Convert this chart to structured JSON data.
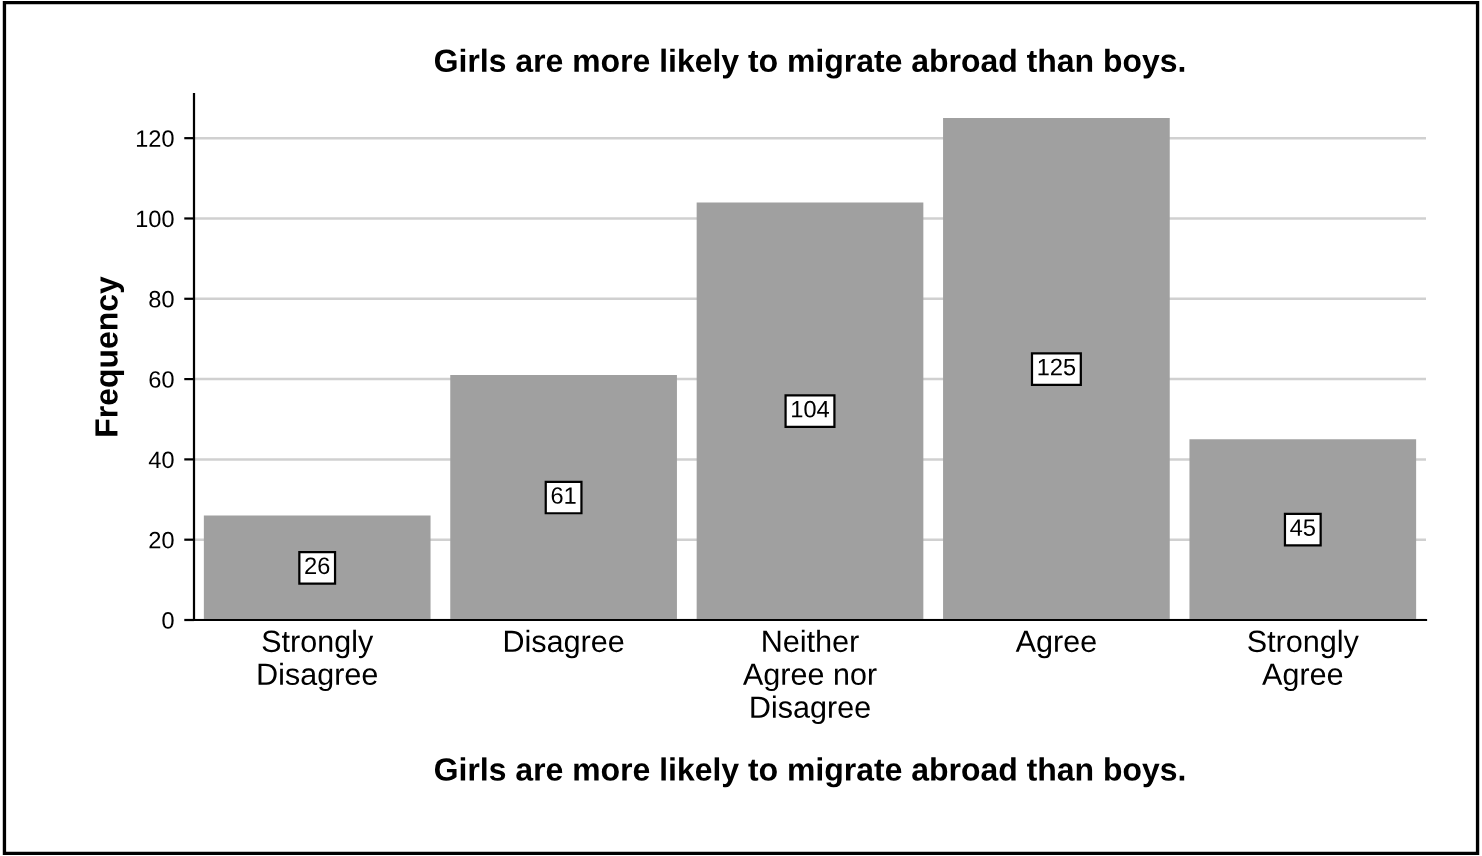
{
  "chart_data": {
    "type": "bar",
    "title": "Girls are more likely to migrate abroad than boys.",
    "xlabel": "Girls are more likely to migrate abroad than boys.",
    "ylabel": "Frequency",
    "categories": [
      "Strongly\nDisagree",
      "Disagree",
      "Neither\nAgree nor\nDisagree",
      "Agree",
      "Strongly\nAgree"
    ],
    "values": [
      26,
      61,
      104,
      125,
      45
    ],
    "color": "#a0a0a0",
    "ylim": [
      0,
      131
    ],
    "yticks": [
      0,
      20,
      40,
      60,
      80,
      100,
      120
    ],
    "grid": "y",
    "data_labels": true
  }
}
